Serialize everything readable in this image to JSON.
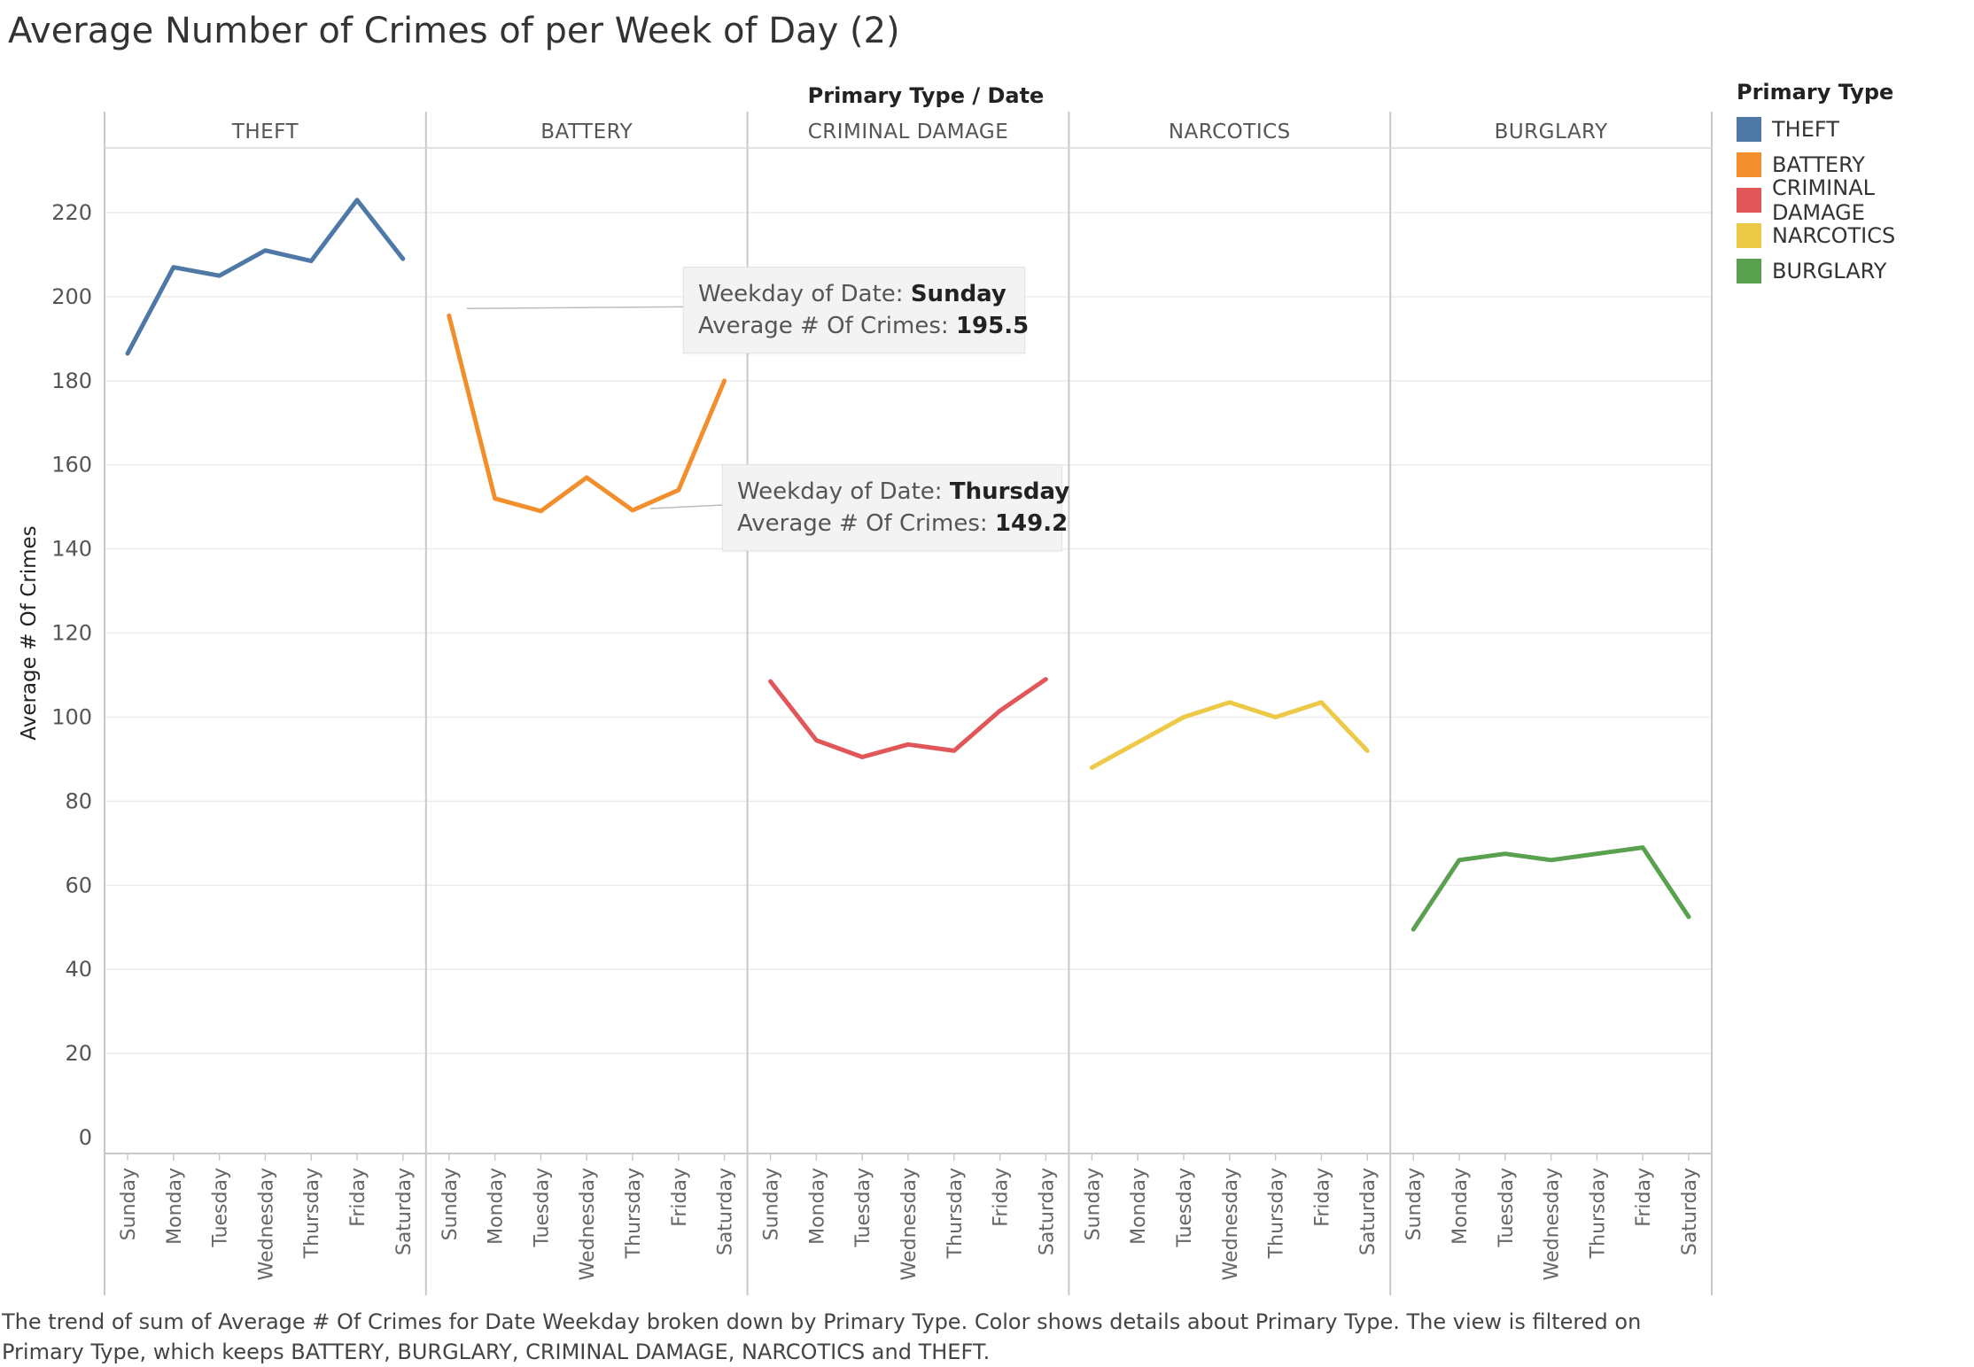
{
  "title": "Average Number of Crimes of per Week of Day (2)",
  "caption": "The trend of sum of Average # Of Crimes for Date Weekday broken down by Primary Type.  Color shows details about Primary Type. The view is filtered on Primary Type, which keeps BATTERY, BURGLARY, CRIMINAL DAMAGE, NARCOTICS and THEFT.",
  "legend": {
    "title": "Primary Type",
    "items": [
      {
        "label": "THEFT",
        "color": "#4e79a7"
      },
      {
        "label": "BATTERY",
        "color": "#f28e2b"
      },
      {
        "label": "CRIMINAL DAMAGE",
        "color": "#e15759"
      },
      {
        "label": "NARCOTICS",
        "color": "#edc948"
      },
      {
        "label": "BURGLARY",
        "color": "#59a14f"
      }
    ]
  },
  "tooltips": [
    {
      "field1_label": "Weekday of Date:",
      "field1_value": "Sunday",
      "field2_label": "Average # Of Crimes:",
      "field2_value": "195.5"
    },
    {
      "field1_label": "Weekday of Date:",
      "field1_value": "Thursday",
      "field2_label": "Average # Of Crimes:",
      "field2_value": "149.2"
    }
  ],
  "chart_data": {
    "type": "line",
    "header_label": "Primary Type  /  Date",
    "ylabel": "Average # Of Crimes",
    "ylim": [
      0,
      240
    ],
    "yticks": [
      0,
      20,
      40,
      60,
      80,
      100,
      120,
      140,
      160,
      180,
      200,
      220
    ],
    "categories": [
      "Sunday",
      "Monday",
      "Tuesday",
      "Wednesday",
      "Thursday",
      "Friday",
      "Saturday"
    ],
    "grid": true,
    "legend_position": "right",
    "series": [
      {
        "name": "THEFT",
        "color": "#4e79a7",
        "values": [
          186.5,
          207,
          205,
          211,
          208.5,
          223,
          209
        ]
      },
      {
        "name": "BATTERY",
        "color": "#f28e2b",
        "values": [
          195.5,
          152,
          149,
          157,
          149.2,
          154,
          180
        ]
      },
      {
        "name": "CRIMINAL DAMAGE",
        "color": "#e15759",
        "values": [
          108.5,
          94.5,
          90.5,
          93.5,
          92,
          101.5,
          109
        ]
      },
      {
        "name": "NARCOTICS",
        "color": "#edc948",
        "values": [
          88,
          94,
          100,
          103.5,
          100,
          103.5,
          92
        ]
      },
      {
        "name": "BURGLARY",
        "color": "#59a14f",
        "values": [
          49.5,
          66,
          67.5,
          66,
          67.5,
          69,
          52.5
        ]
      }
    ]
  }
}
